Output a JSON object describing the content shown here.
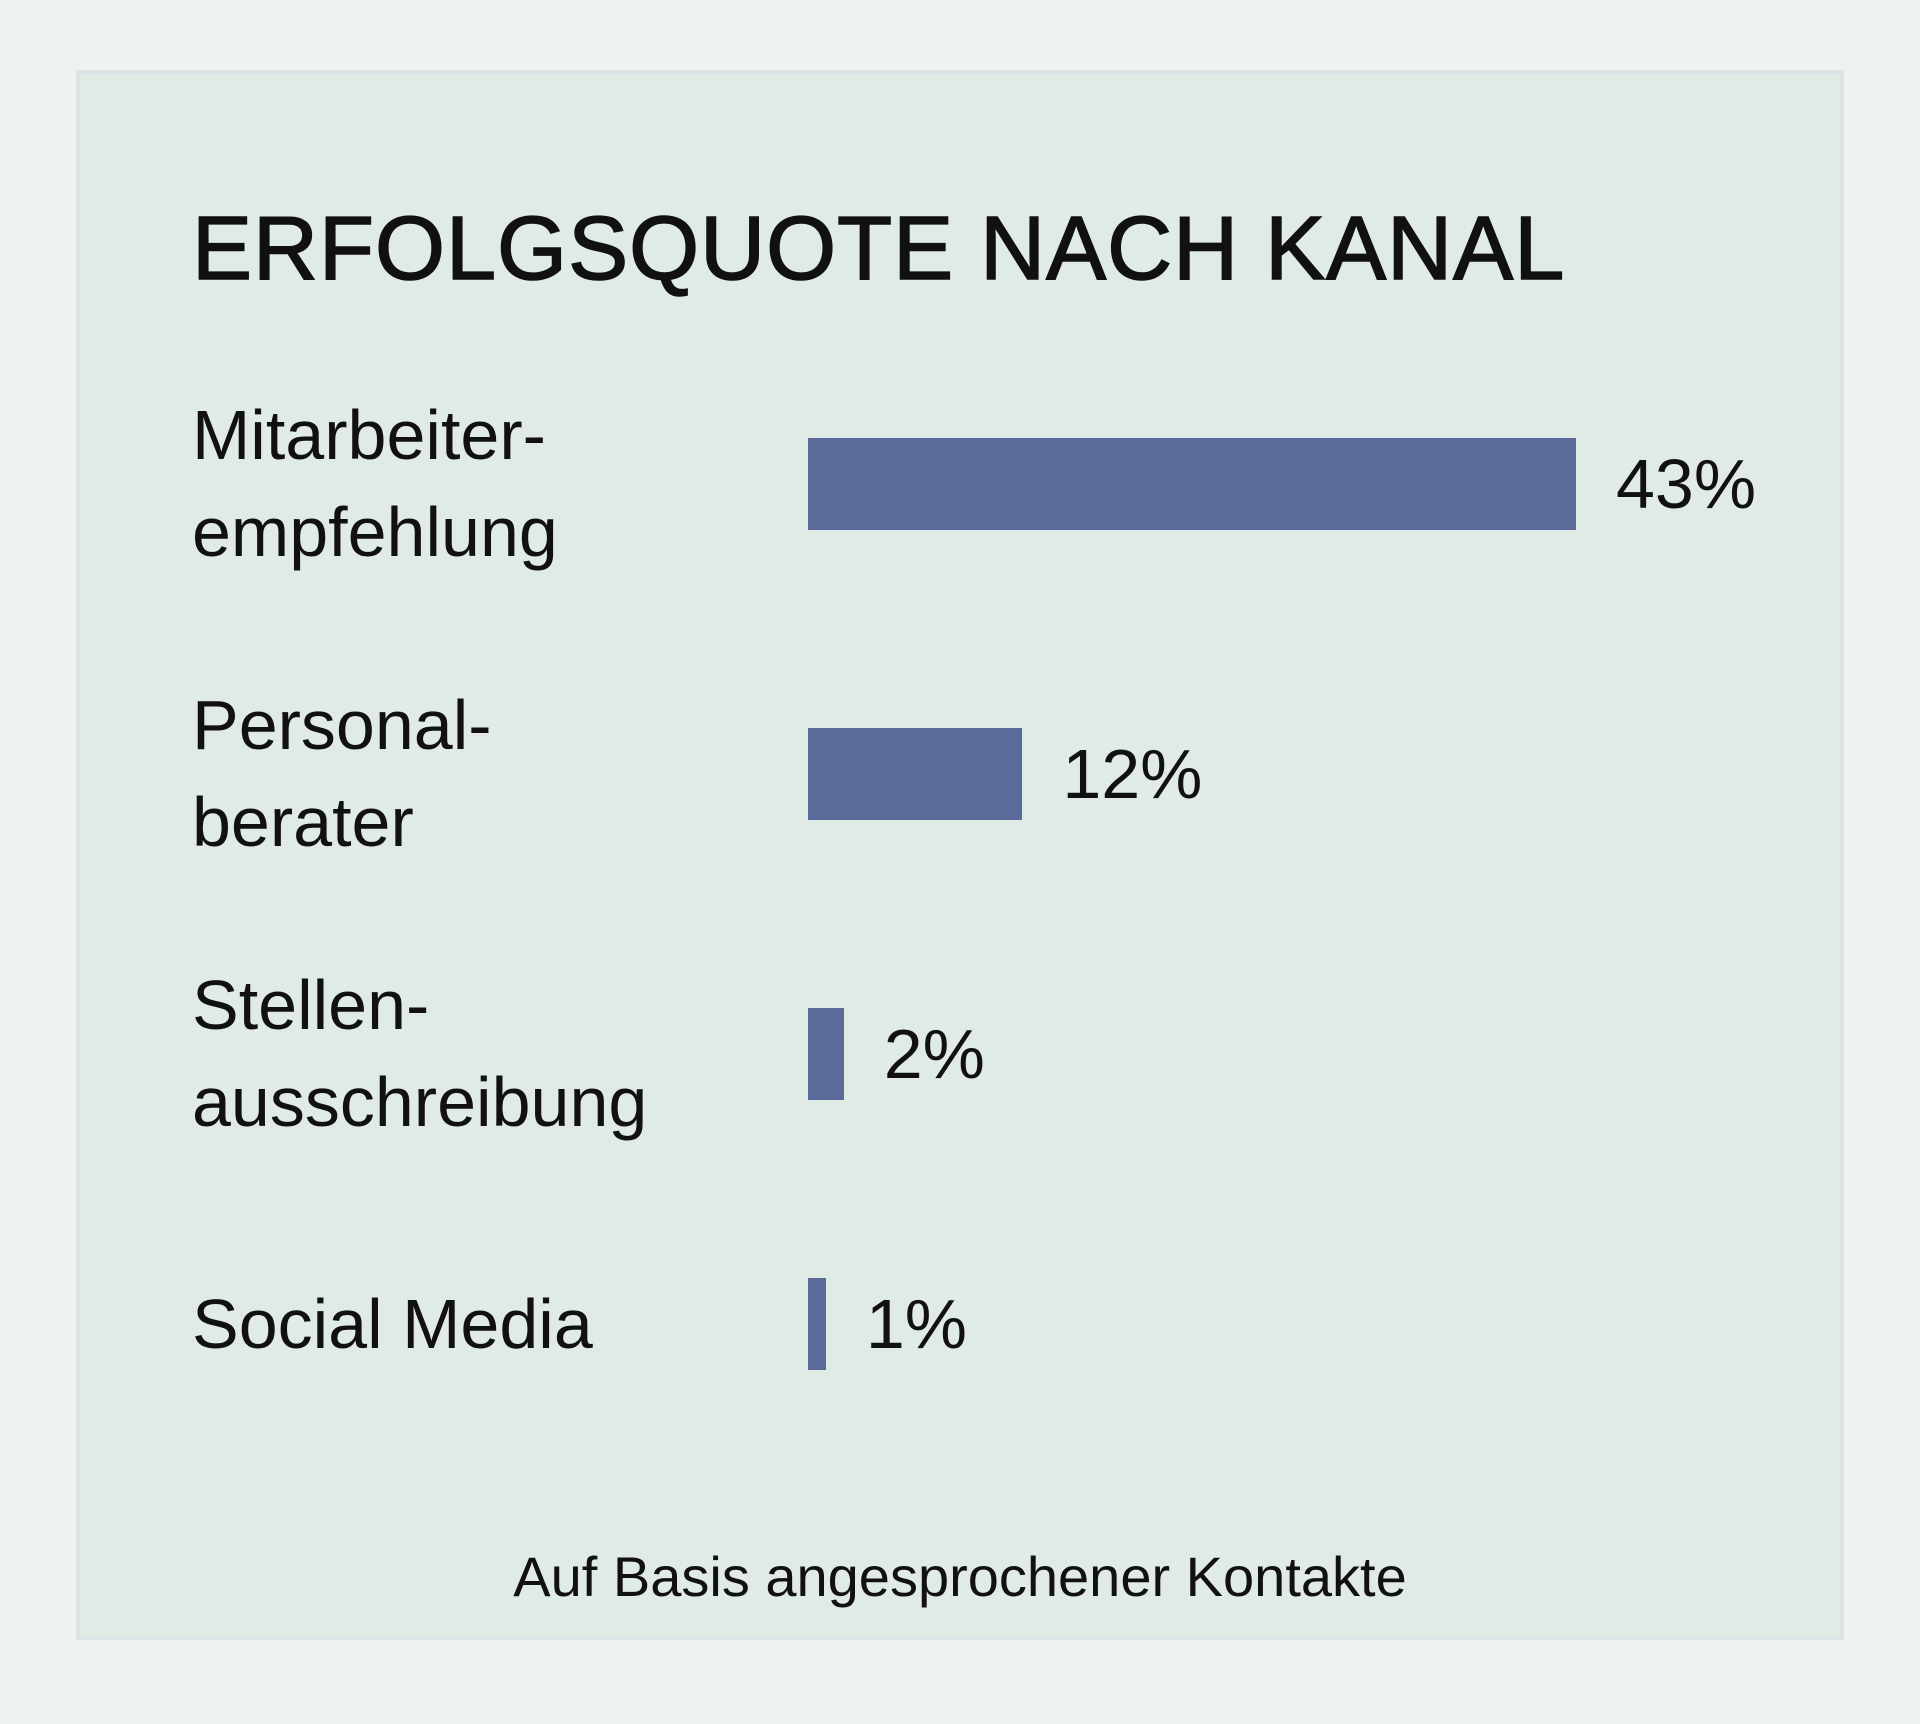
{
  "chart_data": {
    "type": "bar",
    "orientation": "horizontal",
    "title": "ERFOLGSQUOTE NACH KANAL",
    "categories": [
      "Mitarbeiter-\nempfehlung",
      "Personal-\nberater",
      "Stellen-\nausschreibung",
      "Social Media"
    ],
    "values": [
      43,
      12,
      2,
      1
    ],
    "value_labels": [
      "43%",
      "12%",
      "2%",
      "1%"
    ],
    "unit": "%",
    "xlim": [
      0,
      43
    ],
    "grid": false,
    "legend": "none",
    "bar_color": "#5a6b9b",
    "footnote": "Auf Basis angesprochener Kontakte"
  }
}
